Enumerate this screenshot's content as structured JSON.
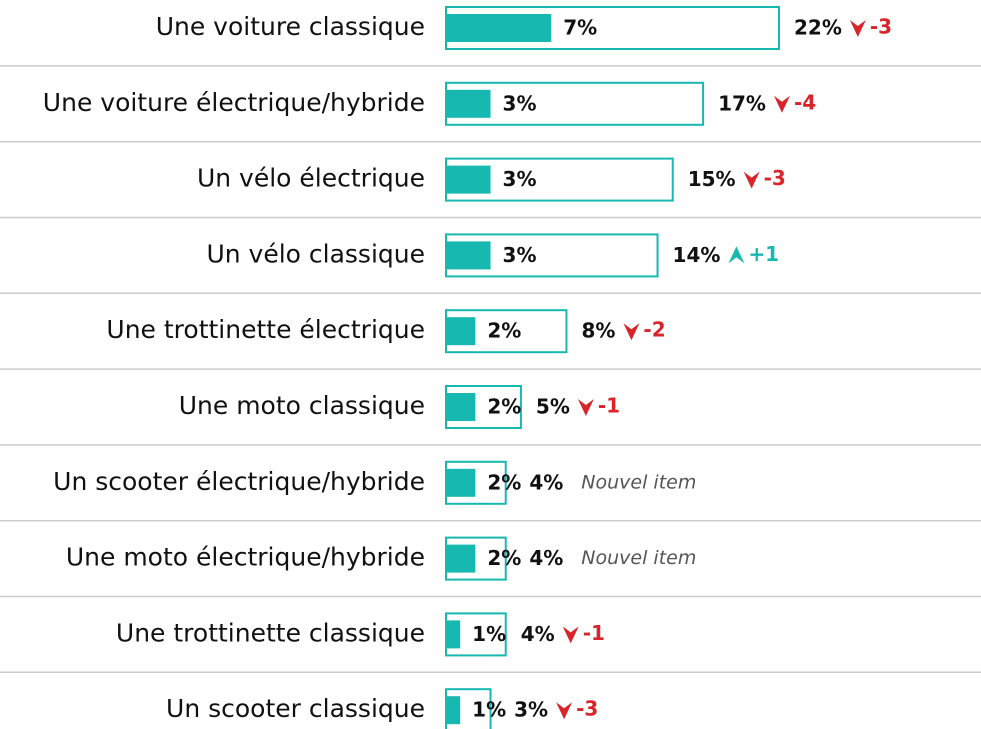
{
  "chart_data": {
    "type": "bar",
    "categories": [
      "Une voiture classique",
      "Une voiture électrique/hybride",
      "Un vélo électrique",
      "Un vélo classique",
      "Une trottinette électrique",
      "Une moto classique",
      "Un scooter électrique/hybride",
      "Une moto électrique/hybride",
      "Une trottinette classique",
      "Un scooter classique"
    ],
    "series": [
      {
        "color": "#17b8b0",
        "style": "filled",
        "values": [
          7,
          3,
          3,
          3,
          2,
          2,
          2,
          2,
          1,
          1
        ],
        "value_labels": [
          "7%",
          "3%",
          "3%",
          "3%",
          "2%",
          "2%",
          "2%",
          "2%",
          "1%",
          "1%"
        ]
      },
      {
        "color": "#17b8b0",
        "style": "outline",
        "values": [
          22,
          17,
          15,
          14,
          8,
          5,
          4,
          4,
          4,
          3
        ],
        "value_labels": [
          "22%",
          "17%",
          "15%",
          "14%",
          "8%",
          "5%",
          "4%",
          "4%",
          "4%",
          "3%"
        ]
      },
      {
        "style": "change",
        "colors": {
          "down": "#d9252a",
          "up": "#17b8b0"
        },
        "values": [
          -3,
          -4,
          -3,
          1,
          -2,
          -1,
          null,
          null,
          -1,
          -3
        ],
        "value_labels": [
          "-3",
          "-4",
          "-3",
          "+1",
          "-2",
          "-1",
          "Nouvel item",
          "Nouvel item",
          "-1",
          "-3"
        ]
      }
    ],
    "xlim": [
      0,
      22
    ]
  }
}
